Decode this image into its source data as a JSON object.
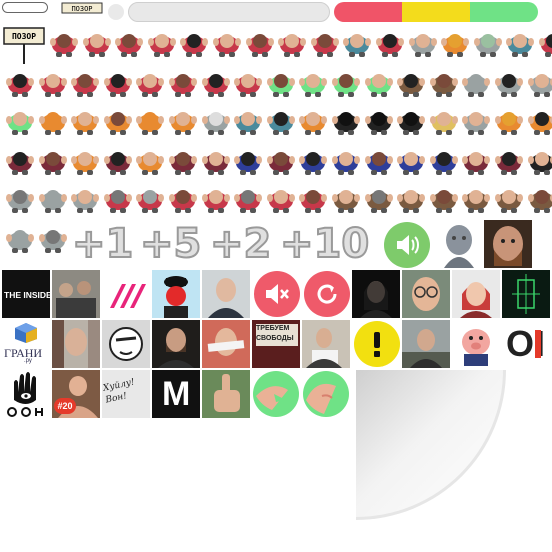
{
  "sign_text": "ПОЗОР",
  "counters": [
    "+1",
    "+5",
    "+2",
    "+10"
  ],
  "tiles": {
    "insider": "THE INSIDER",
    "grani": "ГРАНИ",
    "grani_sub": ".ру",
    "m_logo": "M",
    "badge": "#20",
    "protest": "ТРЕБУЕМ СВОБОДЫ",
    "graffiti": "Хуйлу! Вон!",
    "oi": "OI"
  },
  "colors": {
    "red": "#f05468",
    "yellow": "#f3dc1c",
    "green": "#6fe286",
    "sound_green": "#7ecb6b",
    "mute_pink": "#ef5a6a"
  },
  "icons": [
    "sound-icon",
    "mute-icon",
    "restart-icon",
    "exclamation-icon",
    "shout-icon"
  ]
}
